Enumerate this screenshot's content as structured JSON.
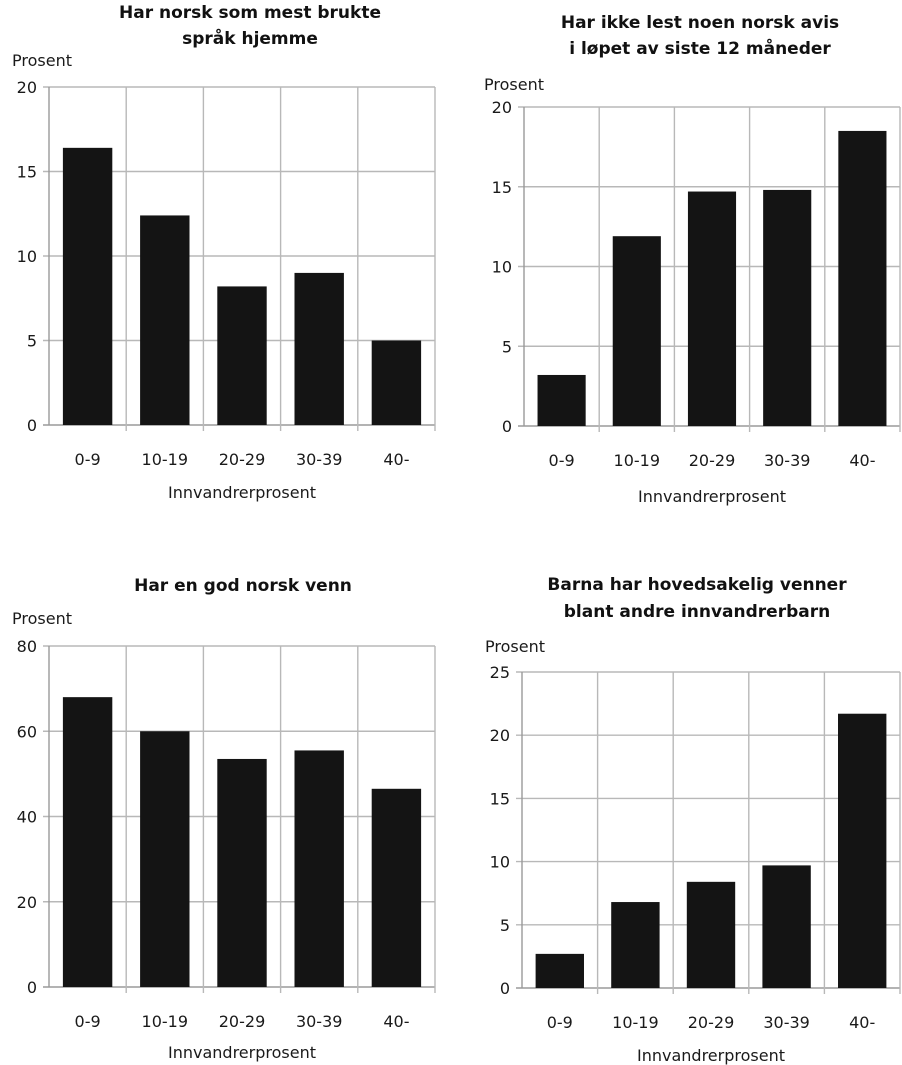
{
  "chart_data": [
    {
      "type": "bar",
      "title": [
        "Har norsk som mest brukte",
        "språk hjemme"
      ],
      "ylabel": "Prosent",
      "xlabel": "Innvandrerprosent",
      "categories": [
        "0-9",
        "10-19",
        "20-29",
        "30-39",
        "40-"
      ],
      "values": [
        16.4,
        12.4,
        8.2,
        9.0,
        5.0
      ],
      "ylim": [
        0,
        20
      ],
      "yticks": [
        "0",
        "5",
        "10",
        "15",
        "20"
      ],
      "grid": true
    },
    {
      "type": "bar",
      "title": [
        "Har ikke lest noen norsk avis",
        "i  løpet av siste 12 måneder"
      ],
      "ylabel": "Prosent",
      "xlabel": "Innvandrerprosent",
      "categories": [
        "0-9",
        "10-19",
        "20-29",
        "30-39",
        "40-"
      ],
      "values": [
        3.2,
        11.9,
        14.7,
        14.8,
        18.5
      ],
      "ylim": [
        0,
        20
      ],
      "yticks": [
        "0",
        "5",
        "10",
        "15",
        "20"
      ],
      "grid": true
    },
    {
      "type": "bar",
      "title": [
        "Har en god norsk venn"
      ],
      "ylabel": "Prosent",
      "xlabel": "Innvandrerprosent",
      "categories": [
        "0-9",
        "10-19",
        "20-29",
        "30-39",
        "40-"
      ],
      "values": [
        68.0,
        60.0,
        53.5,
        55.5,
        46.5
      ],
      "ylim": [
        0,
        80
      ],
      "yticks": [
        "0",
        "20",
        "40",
        "60",
        "80"
      ],
      "grid": true
    },
    {
      "type": "bar",
      "title": [
        "Barna har hovedsakelig venner",
        "blant andre innvandrerbarn"
      ],
      "ylabel": "Prosent",
      "xlabel": "Innvandrerprosent",
      "categories": [
        "0-9",
        "10-19",
        "20-29",
        "30-39",
        "40-"
      ],
      "values": [
        2.7,
        6.8,
        8.4,
        9.7,
        21.7
      ],
      "ylim": [
        0,
        25
      ],
      "yticks": [
        "0",
        "5",
        "10",
        "15",
        "20",
        "25"
      ],
      "grid": true
    }
  ]
}
